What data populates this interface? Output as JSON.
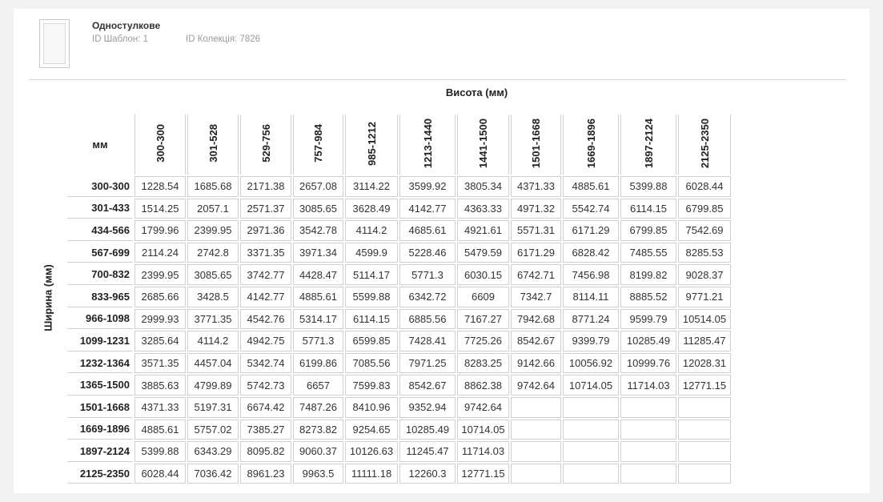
{
  "header": {
    "title": "Одностулкове",
    "template_id": "ID Шаблон: 1",
    "collection_id": "ID Колекція: 7826"
  },
  "table": {
    "height_axis_label": "Висота (мм)",
    "width_axis_label": "Ширина (мм)",
    "corner_label": "мм",
    "columns": [
      "300-300",
      "301-528",
      "529-756",
      "757-984",
      "985-1212",
      "1213-1440",
      "1441-1500",
      "1501-1668",
      "1669-1896",
      "1897-2124",
      "2125-2350"
    ],
    "rows": [
      {
        "label": "300-300",
        "cells": [
          "1228.54",
          "1685.68",
          "2171.38",
          "2657.08",
          "3114.22",
          "3599.92",
          "3805.34",
          "4371.33",
          "4885.61",
          "5399.88",
          "6028.44"
        ]
      },
      {
        "label": "301-433",
        "cells": [
          "1514.25",
          "2057.1",
          "2571.37",
          "3085.65",
          "3628.49",
          "4142.77",
          "4363.33",
          "4971.32",
          "5542.74",
          "6114.15",
          "6799.85"
        ]
      },
      {
        "label": "434-566",
        "cells": [
          "1799.96",
          "2399.95",
          "2971.36",
          "3542.78",
          "4114.2",
          "4685.61",
          "4921.61",
          "5571.31",
          "6171.29",
          "6799.85",
          "7542.69"
        ]
      },
      {
        "label": "567-699",
        "cells": [
          "2114.24",
          "2742.8",
          "3371.35",
          "3971.34",
          "4599.9",
          "5228.46",
          "5479.59",
          "6171.29",
          "6828.42",
          "7485.55",
          "8285.53"
        ]
      },
      {
        "label": "700-832",
        "cells": [
          "2399.95",
          "3085.65",
          "3742.77",
          "4428.47",
          "5114.17",
          "5771.3",
          "6030.15",
          "6742.71",
          "7456.98",
          "8199.82",
          "9028.37"
        ]
      },
      {
        "label": "833-965",
        "cells": [
          "2685.66",
          "3428.5",
          "4142.77",
          "4885.61",
          "5599.88",
          "6342.72",
          "6609",
          "7342.7",
          "8114.11",
          "8885.52",
          "9771.21"
        ]
      },
      {
        "label": "966-1098",
        "cells": [
          "2999.93",
          "3771.35",
          "4542.76",
          "5314.17",
          "6114.15",
          "6885.56",
          "7167.27",
          "7942.68",
          "8771.24",
          "9599.79",
          "10514.05"
        ]
      },
      {
        "label": "1099-1231",
        "cells": [
          "3285.64",
          "4114.2",
          "4942.75",
          "5771.3",
          "6599.85",
          "7428.41",
          "7725.26",
          "8542.67",
          "9399.79",
          "10285.49",
          "11285.47"
        ]
      },
      {
        "label": "1232-1364",
        "cells": [
          "3571.35",
          "4457.04",
          "5342.74",
          "6199.86",
          "7085.56",
          "7971.25",
          "8283.25",
          "9142.66",
          "10056.92",
          "10999.76",
          "12028.31"
        ]
      },
      {
        "label": "1365-1500",
        "cells": [
          "3885.63",
          "4799.89",
          "5742.73",
          "6657",
          "7599.83",
          "8542.67",
          "8862.38",
          "9742.64",
          "10714.05",
          "11714.03",
          "12771.15"
        ]
      },
      {
        "label": "1501-1668",
        "cells": [
          "4371.33",
          "5197.31",
          "6674.42",
          "7487.26",
          "8410.96",
          "9352.94",
          "9742.64",
          "",
          "",
          "",
          ""
        ]
      },
      {
        "label": "1669-1896",
        "cells": [
          "4885.61",
          "5757.02",
          "7385.27",
          "8273.82",
          "9254.65",
          "10285.49",
          "10714.05",
          "",
          "",
          "",
          ""
        ]
      },
      {
        "label": "1897-2124",
        "cells": [
          "5399.88",
          "6343.29",
          "8095.82",
          "9060.37",
          "10126.63",
          "11245.47",
          "11714.03",
          "",
          "",
          "",
          ""
        ]
      },
      {
        "label": "2125-2350",
        "cells": [
          "6028.44",
          "7036.42",
          "8961.23",
          "9963.5",
          "11111.18",
          "12260.3",
          "12771.15",
          "",
          "",
          "",
          ""
        ]
      }
    ]
  }
}
